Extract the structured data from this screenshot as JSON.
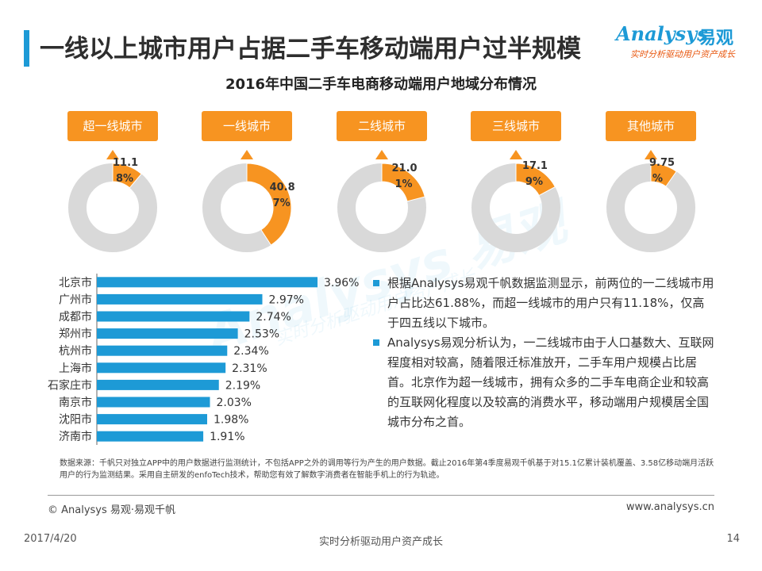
{
  "header": {
    "title": "一线以上城市用户占据二手车移动端用户过半规模"
  },
  "logo": {
    "word": "Analysys",
    "cn": "易观",
    "tagline": "实时分析驱动用户资产成长"
  },
  "watermark": {
    "text": "Analysys 易观",
    "sub": "实时分析驱动用户资产成长"
  },
  "colors": {
    "accent_orange": "#f79421",
    "accent_blue": "#1d9ad6",
    "donut_gray": "#d9d9d9"
  },
  "chart_data": [
    {
      "type": "pie",
      "title": "2016年中国二手车电商移动端用户地域分布情况",
      "categories": [
        "超一线城市",
        "一线城市",
        "二线城市",
        "三线城市",
        "其他城市"
      ],
      "values": [
        11.18,
        40.87,
        21.01,
        17.19,
        9.75
      ],
      "labels": [
        [
          "11.1",
          "8%"
        ],
        [
          "40.8",
          "7%"
        ],
        [
          "21.0",
          "1%"
        ],
        [
          "17.1",
          "9%"
        ],
        [
          "9.75",
          "%"
        ]
      ],
      "unit": "%"
    },
    {
      "type": "bar",
      "orientation": "horizontal",
      "categories": [
        "北京市",
        "广州市",
        "成都市",
        "郑州市",
        "杭州市",
        "上海市",
        "石家庄市",
        "南京市",
        "沈阳市",
        "济南市"
      ],
      "values": [
        3.96,
        2.97,
        2.74,
        2.53,
        2.34,
        2.31,
        2.19,
        2.03,
        1.98,
        1.91
      ],
      "value_labels": [
        "3.96%",
        "2.97%",
        "2.74%",
        "2.53%",
        "2.34%",
        "2.31%",
        "2.19%",
        "2.03%",
        "1.98%",
        "1.91%"
      ],
      "unit": "%"
    }
  ],
  "bullets": [
    "根据Analysys易观千帆数据监测显示，前两位的一二线城市用户占比达61.88%，而超一线城市的用户只有11.18%，仅高于四五线以下城市。",
    "Analysys易观分析认为，一二线城市由于人口基数大、互联网程度相对较高，随着限迁标准放开，二手车用户规模占比居首。北京作为超一线城市，拥有众多的二手车电商企业和较高的互联网化程度以及较高的消费水平，移动端用户规模居全国城市分布之首。"
  ],
  "source_note": "数据来源：千帆只对独立APP中的用户数据进行监测统计，不包括APP之外的调用等行为产生的用户数据。截止2016年第4季度易观千帆基于对15.1亿累计装机覆盖、3.58亿移动端月活跃用户的行为监测结果。采用自主研发的enfoTech技术，帮助您有效了解数字消费者在智能手机上的行为轨迹。",
  "footer": {
    "copyright": "© Analysys 易观·易观千帆",
    "website": "www.analysys.cn",
    "date": "2017/4/20",
    "center": "实时分析驱动用户资产成长",
    "page": "14"
  }
}
